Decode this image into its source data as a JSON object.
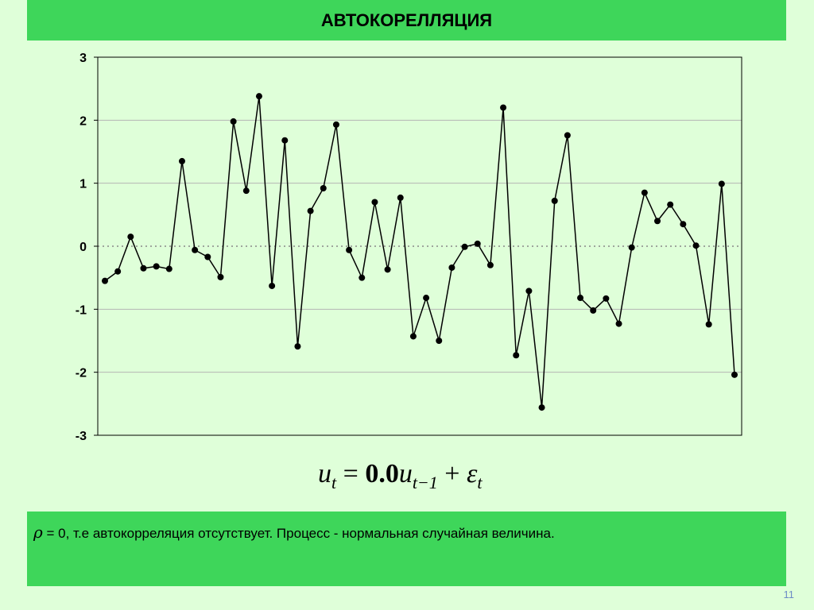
{
  "title": "АВТОКОРЕЛЛЯЦИЯ",
  "formula": {
    "lhs": "u",
    "lhs_sub": "t",
    "equals": " = ",
    "coefficient": "0.0",
    "rhs_var": "u",
    "rhs_sub": "t−1",
    "plus": " + ",
    "error": "ε",
    "error_sub": "t"
  },
  "note": {
    "symbol": "ρ",
    "text": " = 0, т.е автокорреляция отсутствует. Процесс - нормальная случайная величина."
  },
  "page_number": "11",
  "colors": {
    "title_bar": "#3ed65a",
    "note_box": "#3ed65a",
    "background": "#dfffd9",
    "line": "#000000",
    "page_number": "#6d8cc7"
  },
  "chart_data": {
    "type": "line",
    "x": [
      1,
      2,
      3,
      4,
      5,
      6,
      7,
      8,
      9,
      10,
      11,
      12,
      13,
      14,
      15,
      16,
      17,
      18,
      19,
      20,
      21,
      22,
      23,
      24,
      25,
      26,
      27,
      28,
      29,
      30,
      31,
      32,
      33,
      34,
      35,
      36,
      37,
      38,
      39,
      40,
      41,
      42,
      43,
      44,
      45,
      46,
      47,
      48,
      49,
      50
    ],
    "series": [
      {
        "values": [
          -0.55,
          -0.4,
          0.15,
          -0.35,
          -0.32,
          -0.36,
          1.35,
          -0.06,
          -0.17,
          -0.49,
          1.98,
          0.88,
          2.38,
          -0.63,
          1.68,
          -1.59,
          0.56,
          0.92,
          1.93,
          -0.06,
          -0.5,
          0.7,
          -0.37,
          0.77,
          -1.43,
          -0.82,
          -1.5,
          -0.34,
          -0.01,
          0.04,
          -0.3,
          2.2,
          -1.73,
          -0.71,
          -2.56,
          0.72,
          1.76,
          -0.82,
          -1.02,
          -0.83,
          -1.23,
          -0.02,
          0.85,
          0.4,
          0.66,
          0.35,
          0.01,
          -1.24,
          0.99,
          -2.04
        ]
      }
    ],
    "ylim": [
      -3,
      3
    ],
    "y_ticks": [
      "3",
      "2",
      "1",
      "0",
      "-1",
      "-2",
      "-3"
    ],
    "grid": true,
    "legend": "none"
  }
}
